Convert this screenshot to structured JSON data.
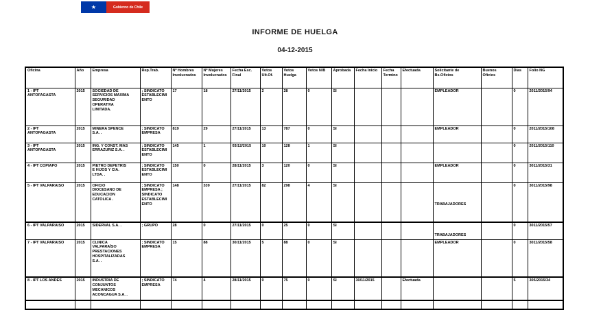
{
  "logo": {
    "text": "Gobierno de Chile"
  },
  "colors": {
    "logo_blue": "#0038a8",
    "logo_red": "#d52b1e"
  },
  "title": "INFORME DE HUELGA",
  "date": "04-12-2015",
  "table": {
    "columns": [
      "Oficina",
      "Año",
      "Empresa",
      "Rep.Trab.",
      "Nº Hombres\nInvolucrados",
      "Nº Mujeres\nInvolucrados",
      "Fecha Esc.\nFinal",
      "Votos\nUlt.Of.",
      "Votos\nHuelga",
      "Votos N/B",
      "Aprobada",
      "Fecha Inicio",
      "Fecha\nTermino",
      "Efectuada",
      "Solicitante de\nBs.Oficios",
      "Buenos\nOficios",
      "Días",
      "Folio NG"
    ],
    "rows": [
      [
        "1 - IPT\nANTOFAGASTA",
        "2015",
        "SOCIEDAD DE\nSERVICIOS MAXIMA\nSEGURIDAD\nOPERATIVA\nLIMITADA.",
        "; SINDICATO\nESTABLECIMI\nENTO",
        "17",
        "18",
        "27/11/2015",
        "2",
        "28",
        "0",
        "SI",
        "",
        "",
        "",
        "EMPLEADOR",
        "",
        "0",
        "2011/2015/94"
      ],
      [
        "2 - IPT\nANTOFAGASTA",
        "2015",
        "MINERA SPENCE\nS.A. .",
        "; SINDICATO\nEMPRESA",
        "819",
        "29",
        "27/11/2015",
        "13",
        "787",
        "0",
        "SI",
        "",
        "",
        "",
        "EMPLEADOR",
        "",
        "0",
        "2011/2015/108"
      ],
      [
        "3 - IPT\nANTOFAGASTA",
        "2015",
        "ING. Y CONST. MAS\nERRAZURIZ S.A. .",
        "; SINDICATO\nESTABLECIMI\nENTO",
        "145",
        "1",
        "03/12/2015",
        "10",
        "128",
        "1",
        "SI",
        "",
        "",
        "",
        "",
        "",
        "0",
        "2011/2015/110"
      ],
      [
        "4 - IPT COPIAPO",
        "2015",
        "PIETRO DEPETRIS\nE HIJOS Y CIA.\nLTDA. .",
        "; SINDICATO\nESTABLECIMI\nENTO",
        "150",
        "0",
        "28/11/2015",
        "3",
        "120",
        "0",
        "SI",
        "",
        "",
        "",
        "EMPLEADOR",
        "",
        "0",
        "3011/2015/31"
      ],
      [
        "5 - IPT VALPARAISO",
        "2015",
        "OFICIO\nDIOCESANO DE\nEDUCACION\nCATOLICA .",
        "; SINDICATO\nEMPRESA ;\nSINDICATO\nESTABLECIMI\nENTO",
        "148",
        "339",
        "27/11/2015",
        "82",
        "298",
        "4",
        "SI",
        "",
        "",
        "",
        "\n\n\n\nTRABAJADORES",
        "",
        "0",
        "3011/2015/98"
      ],
      [
        "6 - IPT VALPARAISO",
        "2015",
        "SIDERVAL S.A. .",
        "; GRUPO",
        "28",
        "0",
        "27/11/2015",
        "0",
        "25",
        "0",
        "SI",
        "",
        "",
        "",
        "\n\nTRABAJADORES",
        "",
        "0",
        "3011/2015/57"
      ],
      [
        "7 - IPT VALPARAISO",
        "2015",
        "CLINICA\nVALPARAÍSO\nPRESTACIONES\nHOSPITALIZADAS\nS.A. .",
        "; SINDICATO\nEMPRESA",
        "15",
        "88",
        "30/11/2015",
        "5",
        "88",
        "0",
        "SI",
        "",
        "",
        "",
        "EMPLEADOR",
        "",
        "0",
        "3011/2015/58"
      ],
      [
        "8 - IPT LOS ANDES",
        "2015",
        "INDUSTRIA DE\nCONJUNTOS\nMECANICOS\nACONCAGUA S.A. .",
        "; SINDICATO\nEMPRESA",
        "74",
        "4",
        "28/11/2015",
        "0",
        "75",
        "0",
        "SI",
        "30/11/2015",
        "",
        "Efectuada",
        "",
        "",
        "5",
        "305/2015/34"
      ],
      [
        "",
        "",
        "",
        "",
        "",
        "",
        "",
        "",
        "",
        "",
        "",
        "",
        "",
        "",
        "",
        "",
        "",
        ""
      ]
    ]
  }
}
